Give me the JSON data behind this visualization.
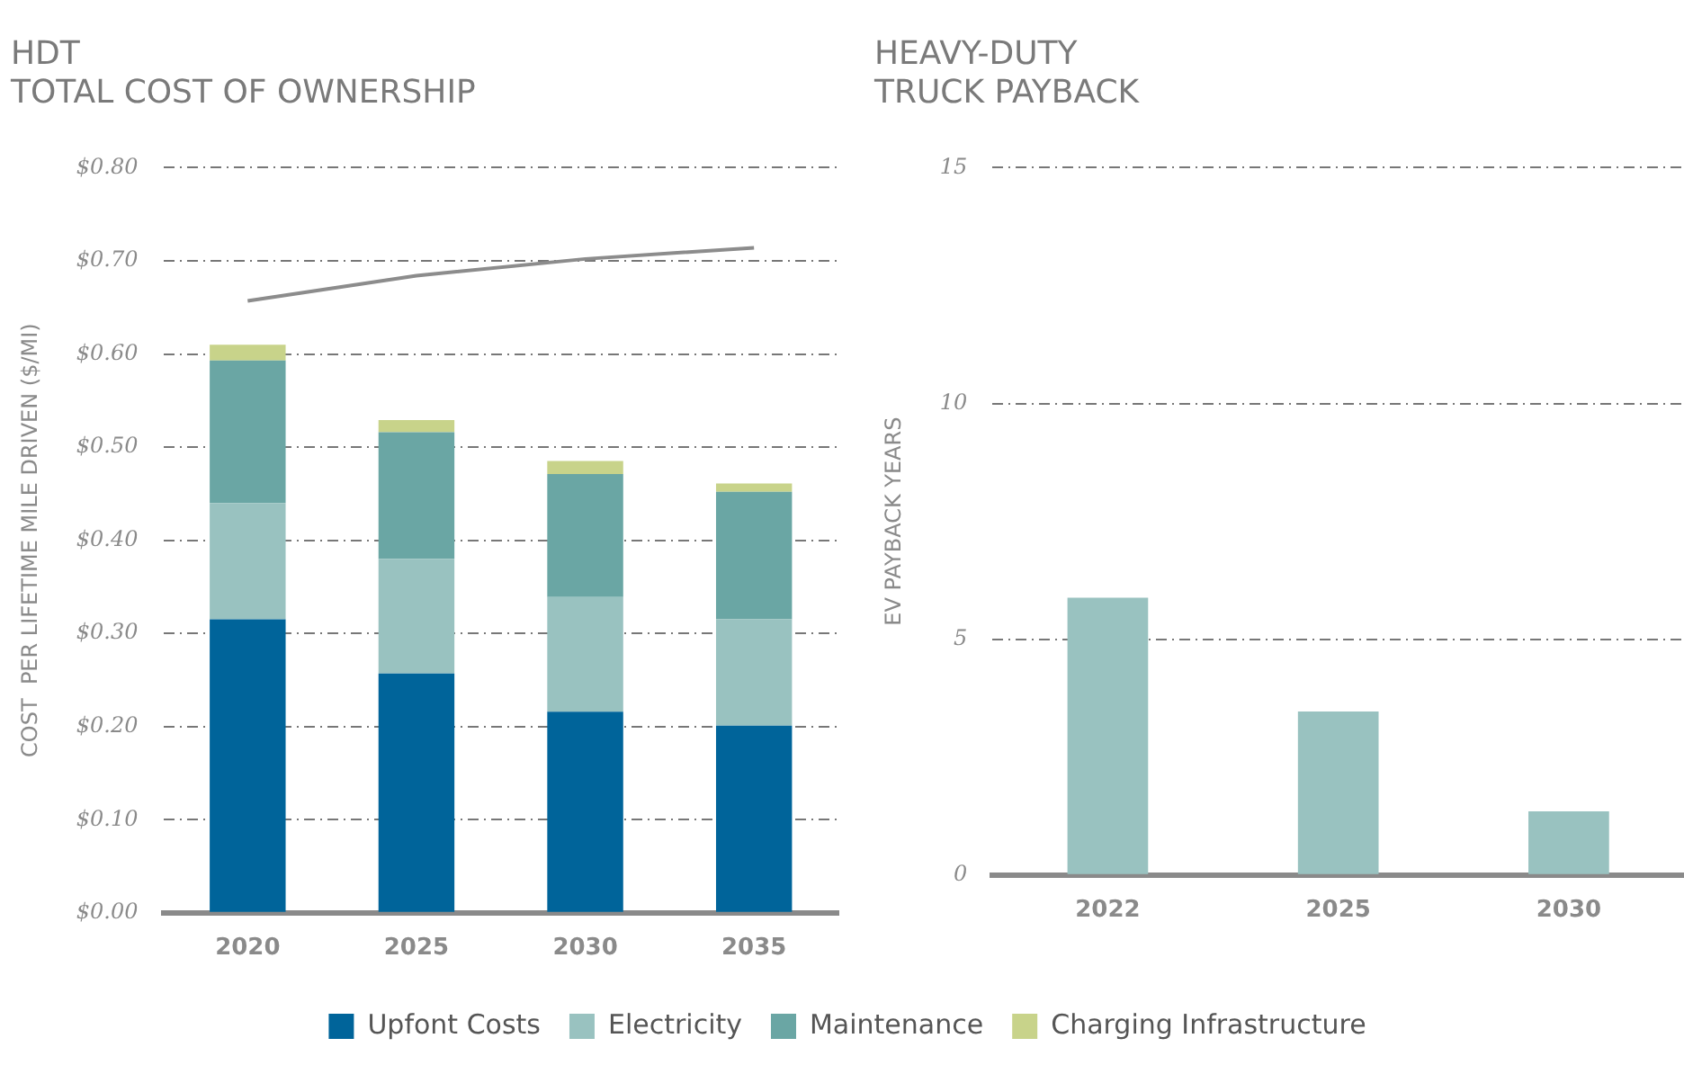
{
  "chart_data": [
    {
      "type": "bar",
      "stacked": true,
      "title": "HDT\nTOTAL COST OF OWNERSHIP",
      "ylabel": "COST  PER LIFETIME MILE DRIVEN ($/MI)",
      "categories": [
        "2020",
        "2025",
        "2030",
        "2035"
      ],
      "series": [
        {
          "name": "Upfont Costs",
          "color": "#00649a",
          "values": [
            0.315,
            0.257,
            0.216,
            0.201
          ]
        },
        {
          "name": "Electricity",
          "color": "#99c2c0",
          "values": [
            0.125,
            0.123,
            0.123,
            0.114
          ]
        },
        {
          "name": "Maintenance",
          "color": "#6aa6a4",
          "values": [
            0.153,
            0.136,
            0.132,
            0.137
          ]
        },
        {
          "name": "Charging Infrastructure",
          "color": "#c8d38a",
          "values": [
            0.017,
            0.013,
            0.014,
            0.009
          ]
        },
        {
          "type": "line",
          "color": "#8c8c8c",
          "values": [
            0.657,
            0.684,
            0.702,
            0.714
          ]
        }
      ],
      "ylim": [
        0,
        0.8
      ],
      "yticks": [
        {
          "value": 0,
          "label": "$0.00"
        },
        {
          "value": 0.1,
          "label": "$0.10"
        },
        {
          "value": 0.2,
          "label": "$0.20"
        },
        {
          "value": 0.3,
          "label": "$0.30"
        },
        {
          "value": 0.4,
          "label": "$0.40"
        },
        {
          "value": 0.5,
          "label": "$0.50"
        },
        {
          "value": 0.6,
          "label": "$0.60"
        },
        {
          "value": 0.7,
          "label": "$0.70"
        },
        {
          "value": 0.8,
          "label": "$0.80"
        }
      ],
      "grid": "y",
      "legend": "bottom",
      "marker": "none"
    },
    {
      "type": "bar",
      "title": "HEAVY-DUTY\nTRUCK PAYBACK",
      "ylabel": "EV PAYBACK YEARS",
      "categories": [
        "2022",
        "2025",
        "2030"
      ],
      "values": [
        5.88,
        3.47,
        1.35
      ],
      "color": "#99c2c0",
      "ylim": [
        0,
        15
      ],
      "yticks": [
        0,
        5,
        10,
        15
      ],
      "grid": "y",
      "legend": false
    }
  ]
}
